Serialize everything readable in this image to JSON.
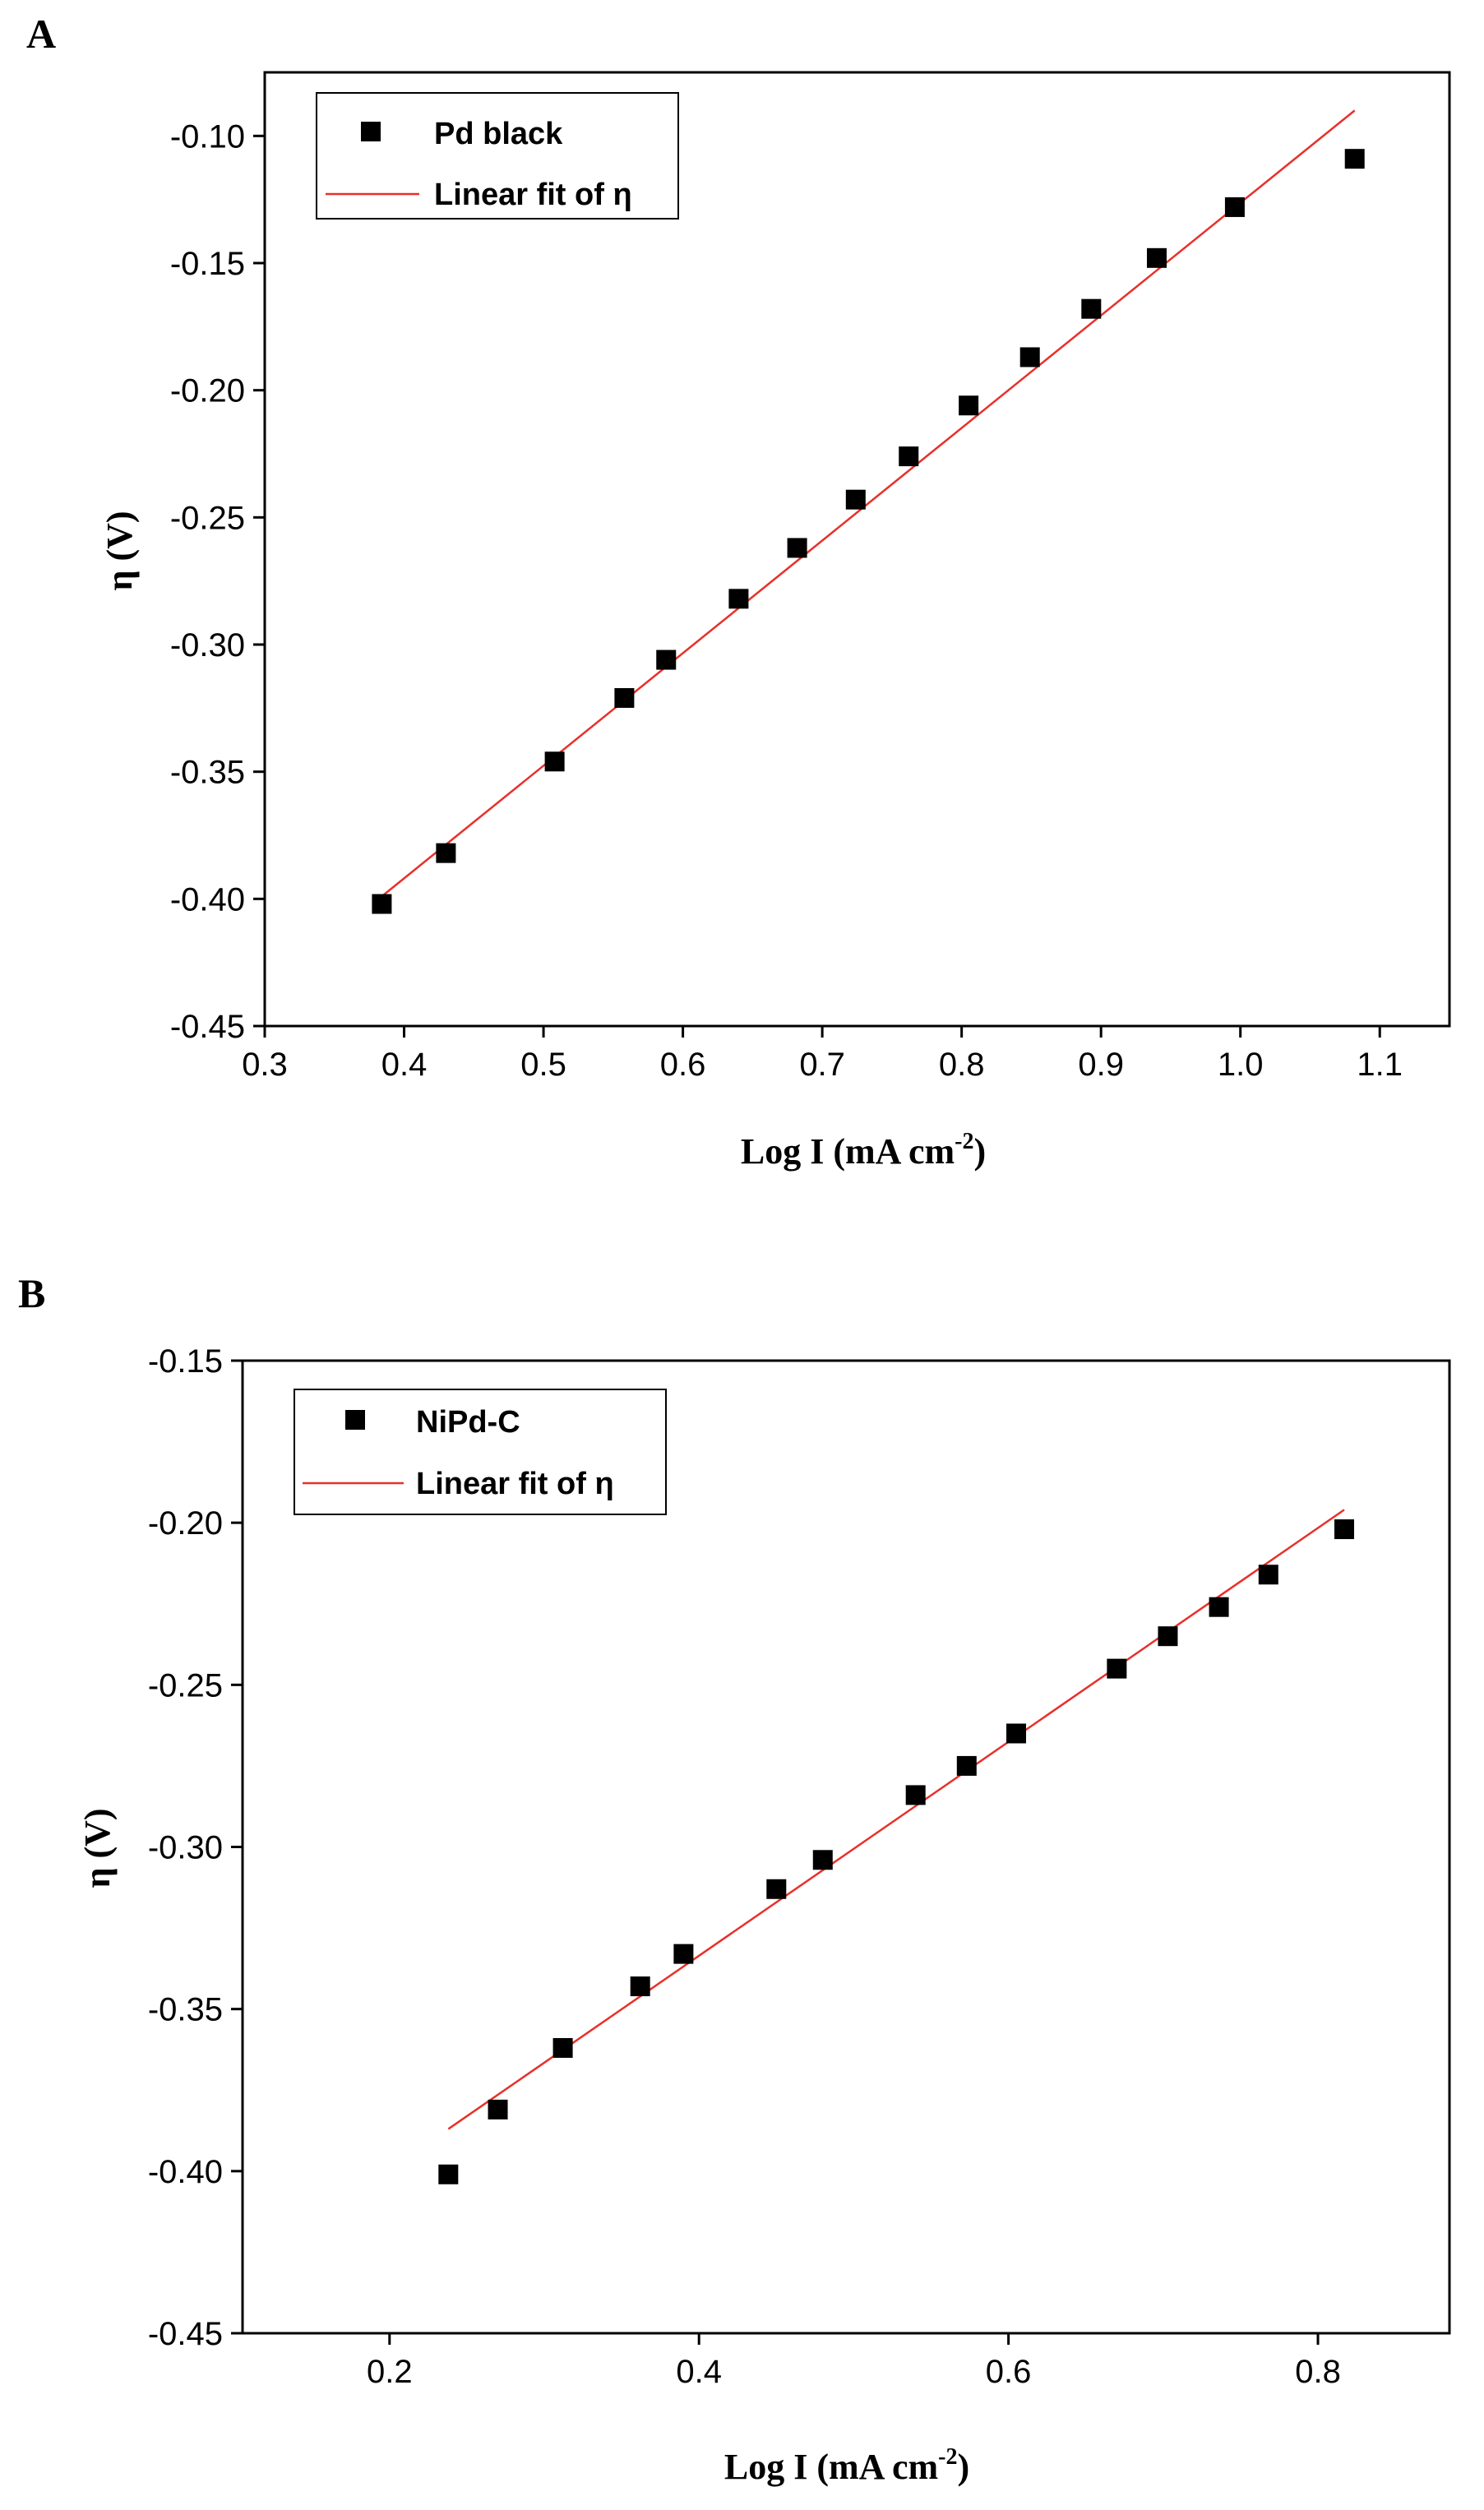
{
  "chart_data": [
    {
      "type": "scatter",
      "panel": "A",
      "xlabel": "Log I (mA cm",
      "xlabel_sup": "-2",
      "xlabel_close": ")",
      "ylabel": "η (V)",
      "xlim": [
        0.3,
        1.15
      ],
      "ylim": [
        -0.45,
        -0.075
      ],
      "xticks": [
        0.3,
        0.4,
        0.5,
        0.6,
        0.7,
        0.8,
        0.9,
        1.0,
        1.1
      ],
      "xtick_labels": [
        "0.3",
        "0.4",
        "0.5",
        "0.6",
        "0.7",
        "0.8",
        "0.9",
        "1.0",
        "1.1"
      ],
      "yticks": [
        -0.45,
        -0.4,
        -0.35,
        -0.3,
        -0.25,
        -0.2,
        -0.15,
        -0.1
      ],
      "ytick_labels": [
        "-0.45",
        "-0.40",
        "-0.35",
        "-0.30",
        "-0.25",
        "-0.20",
        "-0.15",
        "-0.10"
      ],
      "legend": {
        "position": "top-left",
        "entries": [
          "Pd black",
          "Linear fit of η"
        ]
      },
      "series": [
        {
          "name": "Pd black",
          "kind": "scatter",
          "color": "#000000",
          "x": [
            0.384,
            0.43,
            0.508,
            0.558,
            0.588,
            0.64,
            0.682,
            0.724,
            0.762,
            0.805,
            0.849,
            0.893,
            0.94,
            0.996,
            1.082
          ],
          "y": [
            -0.402,
            -0.382,
            -0.346,
            -0.321,
            -0.306,
            -0.282,
            -0.262,
            -0.243,
            -0.226,
            -0.206,
            -0.187,
            -0.168,
            -0.148,
            -0.128,
            -0.109
          ]
        },
        {
          "name": "Linear fit of η",
          "kind": "line",
          "color": "#e8302a",
          "x": [
            0.384,
            1.082
          ],
          "y": [
            -0.399,
            -0.09
          ]
        }
      ]
    },
    {
      "type": "scatter",
      "panel": "B",
      "xlabel": "Log I (mA cm",
      "xlabel_sup": "-2",
      "xlabel_close": ")",
      "ylabel": "η (V)",
      "xlim": [
        0.105,
        0.885
      ],
      "ylim": [
        -0.45,
        -0.15
      ],
      "xticks": [
        0.2,
        0.4,
        0.6,
        0.8
      ],
      "xtick_labels": [
        "0.2",
        "0.4",
        "0.6",
        "0.8"
      ],
      "yticks": [
        -0.45,
        -0.4,
        -0.35,
        -0.3,
        -0.25,
        -0.2,
        -0.15
      ],
      "ytick_labels": [
        "-0.45",
        "-0.40",
        "-0.35",
        "-0.30",
        "-0.25",
        "-0.20",
        "-0.15"
      ],
      "legend": {
        "position": "top-left",
        "entries": [
          "NiPd-C",
          "Linear fit of η"
        ]
      },
      "series": [
        {
          "name": "NiPd-C",
          "kind": "scatter",
          "color": "#000000",
          "x": [
            0.238,
            0.27,
            0.312,
            0.362,
            0.39,
            0.45,
            0.48,
            0.54,
            0.573,
            0.605,
            0.67,
            0.703,
            0.736,
            0.768,
            0.817
          ],
          "y": [
            -0.401,
            -0.381,
            -0.362,
            -0.343,
            -0.333,
            -0.313,
            -0.304,
            -0.284,
            -0.275,
            -0.265,
            -0.245,
            -0.235,
            -0.226,
            -0.216,
            -0.202
          ]
        },
        {
          "name": "Linear fit of η",
          "kind": "line",
          "color": "#e8302a",
          "x": [
            0.238,
            0.817
          ],
          "y": [
            -0.387,
            -0.196
          ]
        }
      ]
    }
  ]
}
